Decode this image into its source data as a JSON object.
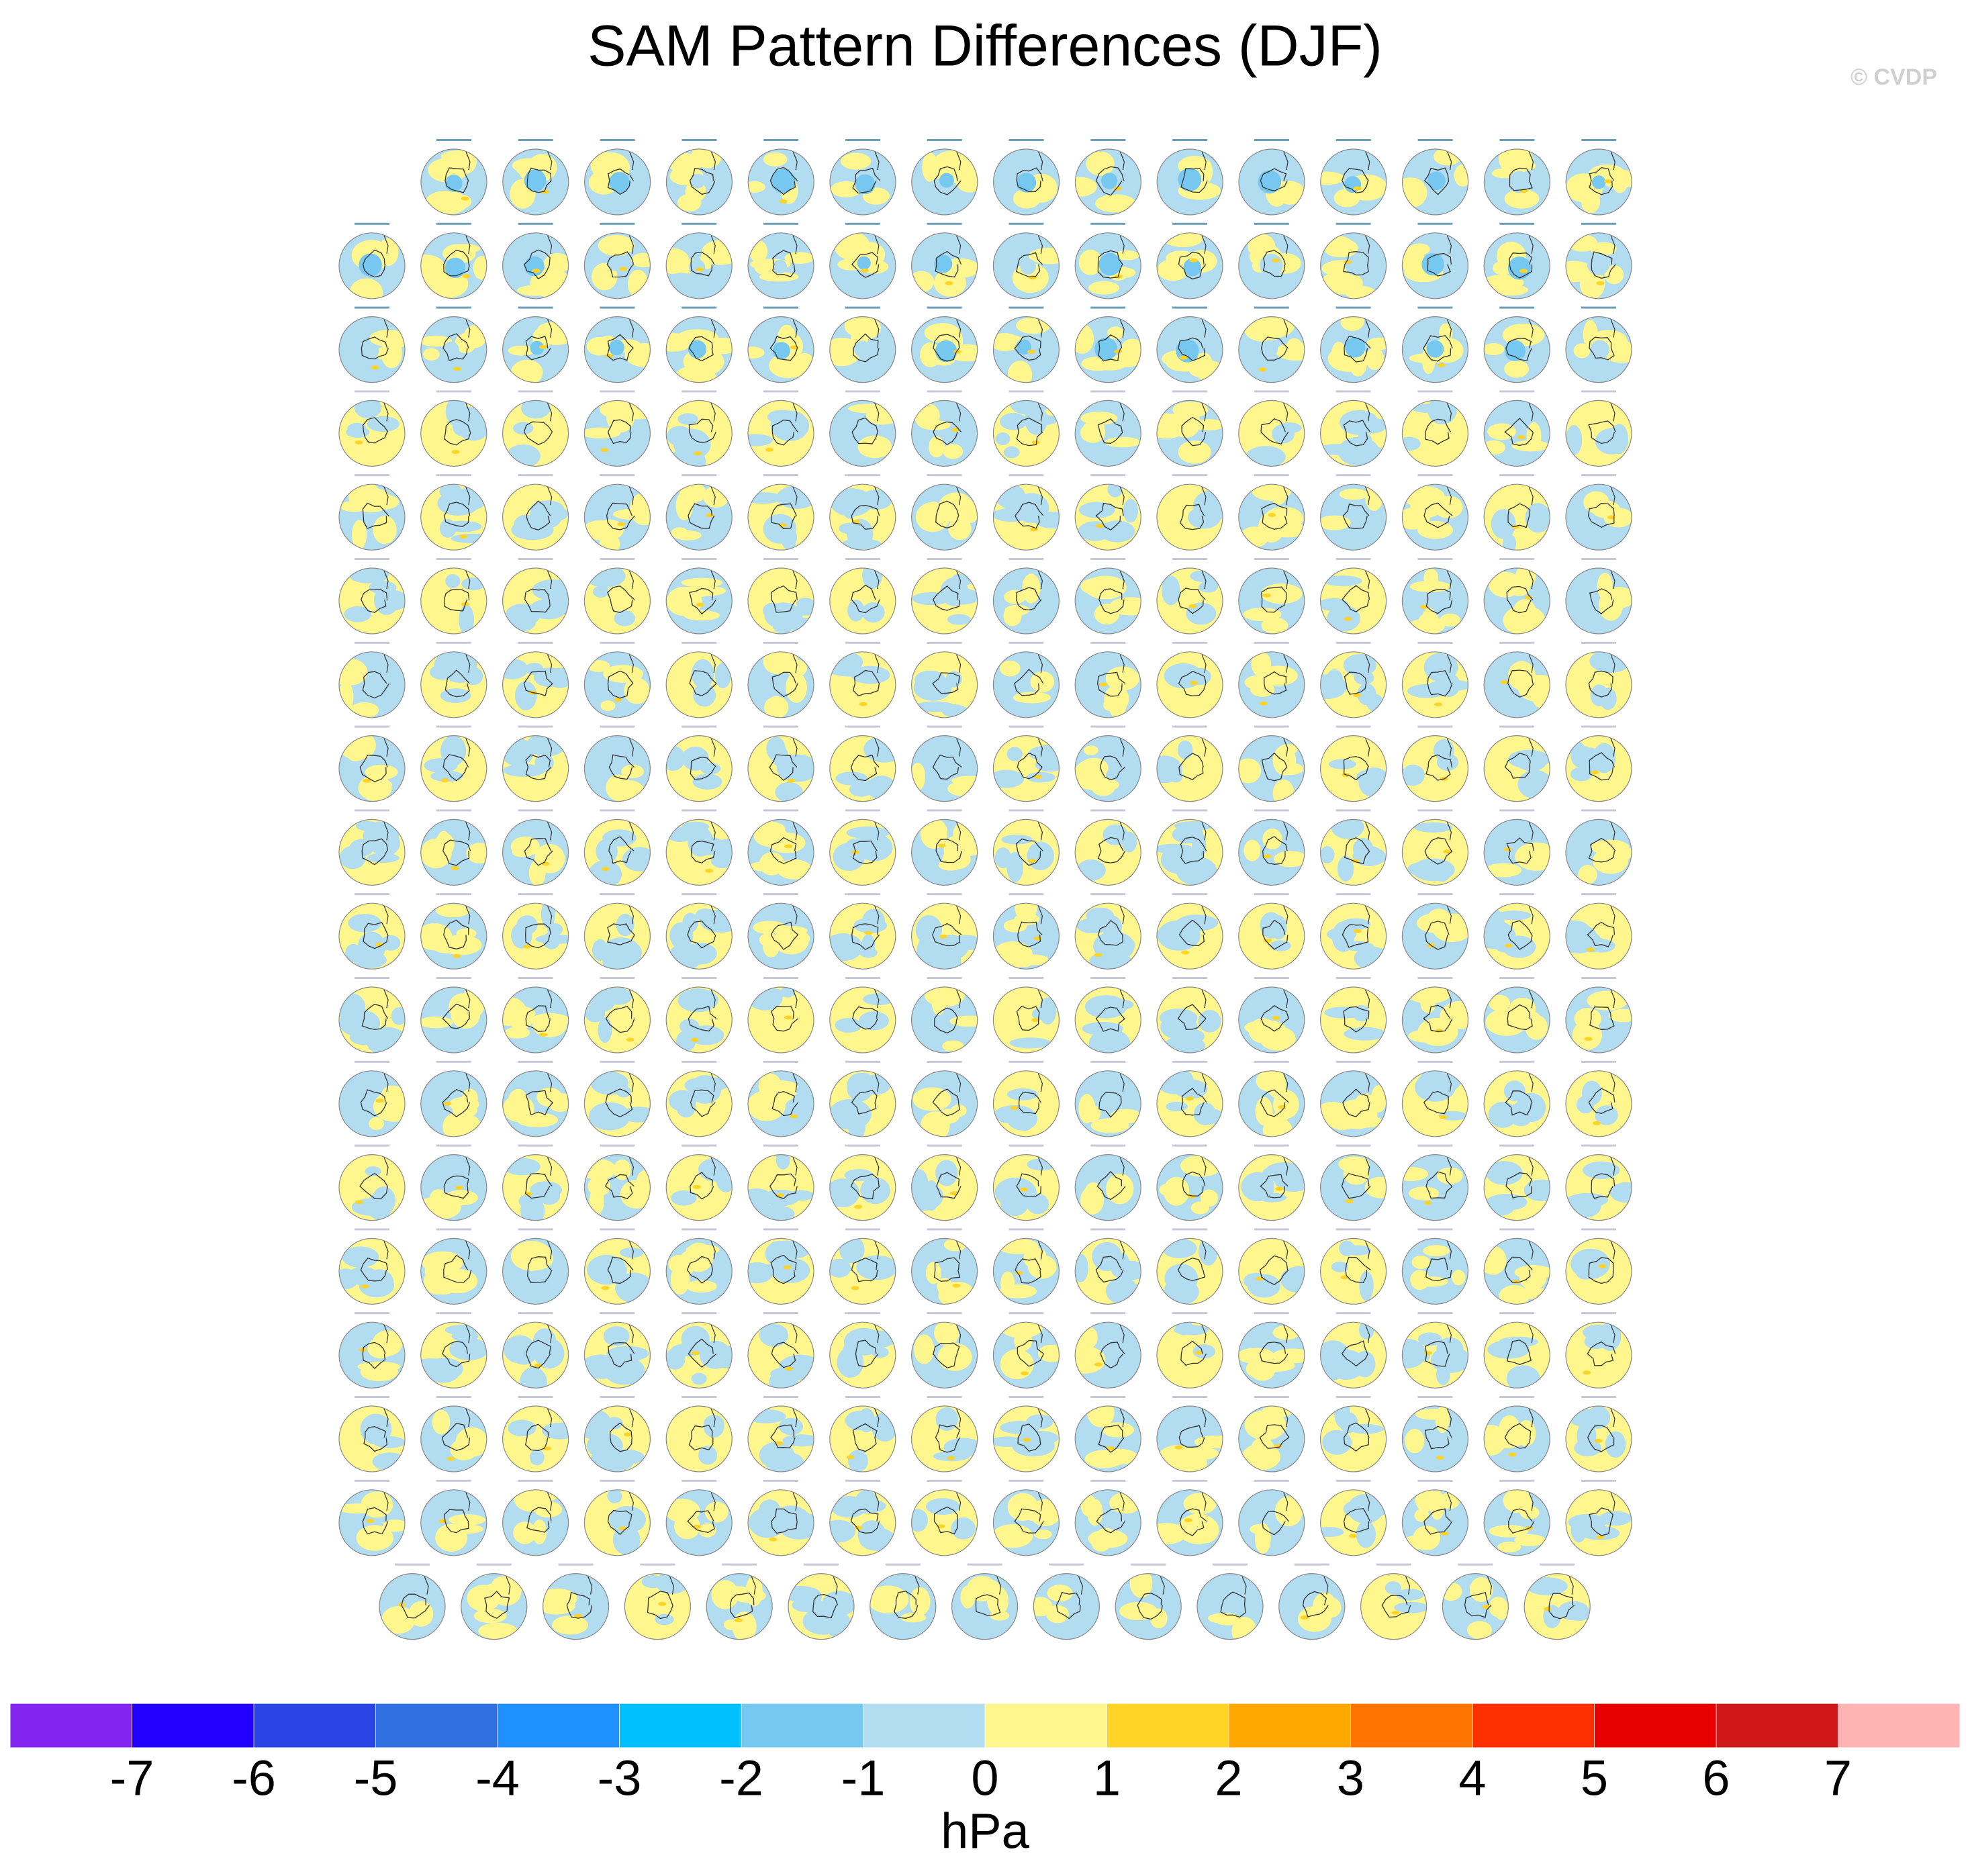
{
  "chart_data": {
    "type": "colorbar",
    "title": "SAM Pattern Differences (DJF)",
    "credit": "© CVDP",
    "colorbar_label": "hPa",
    "ticks": [
      -7,
      -6,
      -5,
      -4,
      -3,
      -2,
      -1,
      0,
      1,
      2,
      3,
      4,
      5,
      6,
      7
    ],
    "colors": [
      "#8424f0",
      "#2200ff",
      "#2a44e6",
      "#3070e0",
      "#1e90ff",
      "#00c0ff",
      "#76c8f0",
      "#b2dcf0",
      "#fff68e",
      "#ffd426",
      "#ffa800",
      "#ff7400",
      "#ff3000",
      "#e80000",
      "#d01818",
      "#ffb4b4"
    ]
  }
}
